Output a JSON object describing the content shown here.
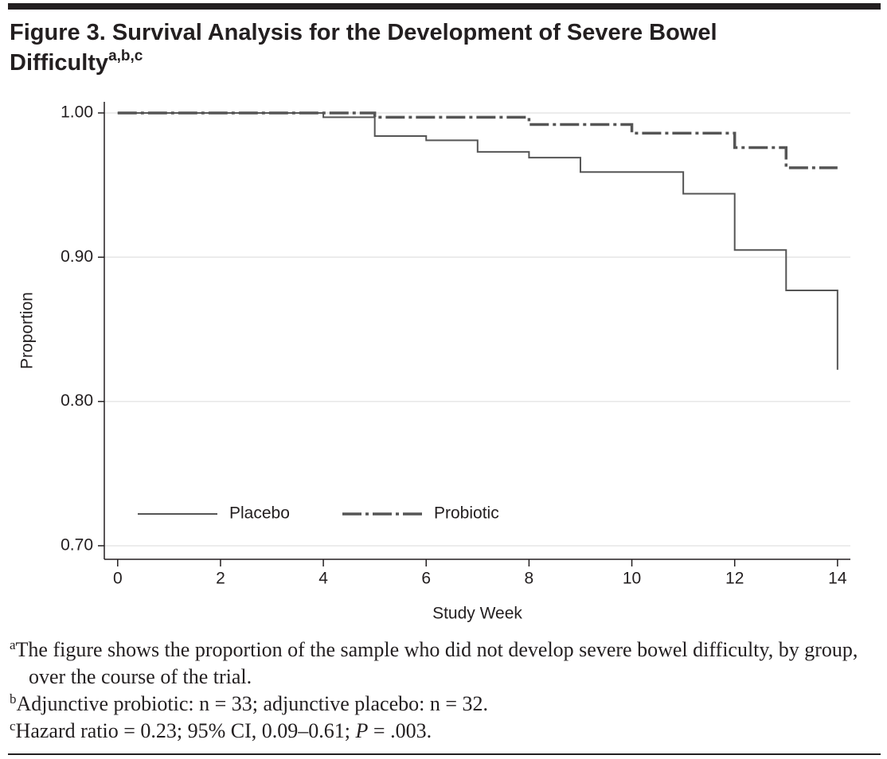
{
  "chart_data": {
    "type": "step",
    "title": "Figure 3. Survival Analysis for the Development of Severe Bowel Difficulty",
    "title_superscript": "a,b,c",
    "x_label": "Study Week",
    "y_label": "Proportion",
    "xlim": [
      -0.26,
      14.25
    ],
    "ylim": [
      0.6906,
      1.0077
    ],
    "xticks": [
      0,
      2,
      4,
      6,
      8,
      10,
      12,
      14
    ],
    "yticks": [
      {
        "value": 1.0,
        "label": "1.00"
      },
      {
        "value": 0.9,
        "label": "0.90"
      },
      {
        "value": 0.8,
        "label": "0.80"
      },
      {
        "value": 0.7,
        "label": "0.70"
      }
    ],
    "grid": true,
    "legend_position": "lower left",
    "series": [
      {
        "name": "Placebo",
        "color": "#555555",
        "line_style": "solid",
        "x": [
          0,
          4,
          5,
          6,
          7,
          8,
          9,
          11,
          12,
          13,
          14
        ],
        "values": [
          1.0,
          0.997,
          0.984,
          0.981,
          0.973,
          0.969,
          0.959,
          0.944,
          0.905,
          0.877,
          0.822
        ]
      },
      {
        "name": "Probiotic",
        "color": "#555555",
        "line_style": "dashdot",
        "x": [
          0,
          5,
          8,
          10,
          12,
          13,
          14
        ],
        "values": [
          1.0,
          0.997,
          0.992,
          0.986,
          0.976,
          0.962,
          0.962
        ]
      }
    ]
  },
  "footnotes": [
    {
      "marker": "a",
      "text": "The figure shows the proportion of the sample who did not develop severe bowel difficulty, by group, over the course of the trial."
    },
    {
      "marker": "b",
      "text": "Adjunctive probiotic: n = 33; adjunctive placebo: n = 32."
    },
    {
      "marker": "c",
      "parts": [
        "Hazard ratio = 0.23; 95% CI, 0.09–0.61; ",
        "P",
        " = .003."
      ]
    }
  ]
}
